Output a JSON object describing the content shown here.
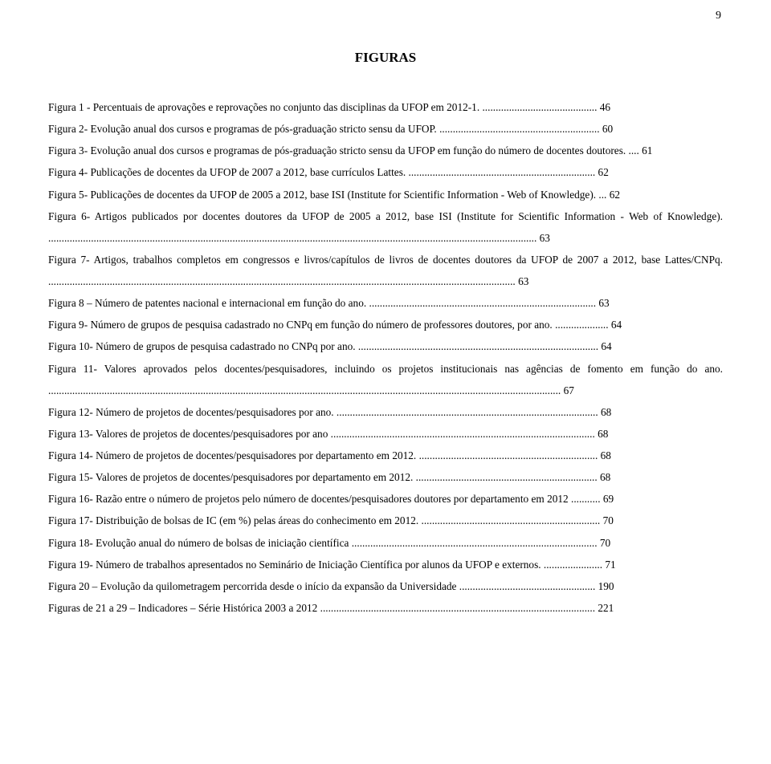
{
  "page_number": "9",
  "title": "FIGURAS",
  "entries": [
    {
      "text": "Figura 1 - Percentuais de aprovações e reprovações no conjunto das disciplinas da UFOP em 2012-1. ........................................... 46"
    },
    {
      "text": "Figura 2- Evolução anual dos cursos e programas de pós-graduação stricto sensu da UFOP. ............................................................ 60"
    },
    {
      "text": "Figura 3- Evolução anual dos cursos e programas de pós-graduação stricto sensu da UFOP em função do número de docentes doutores. .... 61"
    },
    {
      "text": "Figura 4- Publicações de docentes da UFOP de 2007 a 2012, base currículos Lattes. ...................................................................... 62"
    },
    {
      "text": "Figura 5- Publicações de docentes da UFOP de 2005 a 2012, base ISI (Institute for Scientific Information - Web of Knowledge). ... 62"
    },
    {
      "text": "Figura 6- Artigos publicados por docentes doutores da UFOP de 2005 a 2012, base ISI (Institute for Scientific Information - Web of Knowledge). ....................................................................................................................................................................................... 63"
    },
    {
      "text": "Figura 7- Artigos, trabalhos completos em congressos e livros/capítulos de livros de docentes doutores da UFOP de 2007 a 2012, base Lattes/CNPq. ............................................................................................................................................................................... 63"
    },
    {
      "text": "Figura 8 – Número de patentes nacional e internacional em função do ano. ..................................................................................... 63"
    },
    {
      "text": "Figura 9- Número de grupos de pesquisa cadastrado no CNPq em função do número de professores doutores, por ano. .................... 64"
    },
    {
      "text": "Figura 10- Número de grupos de pesquisa cadastrado no CNPq por ano. .......................................................................................... 64"
    },
    {
      "text": "Figura 11- Valores aprovados pelos docentes/pesquisadores, incluindo os projetos institucionais nas agências de fomento em função do ano. ................................................................................................................................................................................................ 67"
    },
    {
      "text": "Figura 12- Número de projetos de docentes/pesquisadores por ano. .................................................................................................. 68"
    },
    {
      "text": "Figura 13- Valores de projetos de docentes/pesquisadores por ano ................................................................................................... 68"
    },
    {
      "text": "Figura 14- Número de projetos de docentes/pesquisadores por departamento em 2012. ................................................................... 68"
    },
    {
      "text": "Figura 15- Valores de projetos de docentes/pesquisadores por departamento em 2012. .................................................................... 68"
    },
    {
      "text": "Figura 16- Razão entre o número de projetos pelo número de docentes/pesquisadores doutores por departamento em 2012 ........... 69"
    },
    {
      "text": "Figura 17- Distribuição de bolsas de IC (em %) pelas áreas do conhecimento em 2012. ................................................................... 70"
    },
    {
      "text": "Figura 18- Evolução anual do número de bolsas de iniciação científica ............................................................................................ 70"
    },
    {
      "text": "Figura 19- Número de trabalhos apresentados no Seminário de Iniciação Científica por alunos da UFOP e externos. ...................... 71"
    },
    {
      "text": "Figura 20 – Evolução da quilometragem percorrida desde o início da expansão da Universidade ................................................... 190"
    },
    {
      "text": "Figuras de 21 a 29 – Indicadores – Série Histórica 2003 a 2012 ....................................................................................................... 221"
    }
  ],
  "text_color": "#000000",
  "background_color": "#ffffff",
  "font_family": "Times New Roman",
  "title_fontsize": 17,
  "body_fontsize": 13.3,
  "line_height": 2.04
}
